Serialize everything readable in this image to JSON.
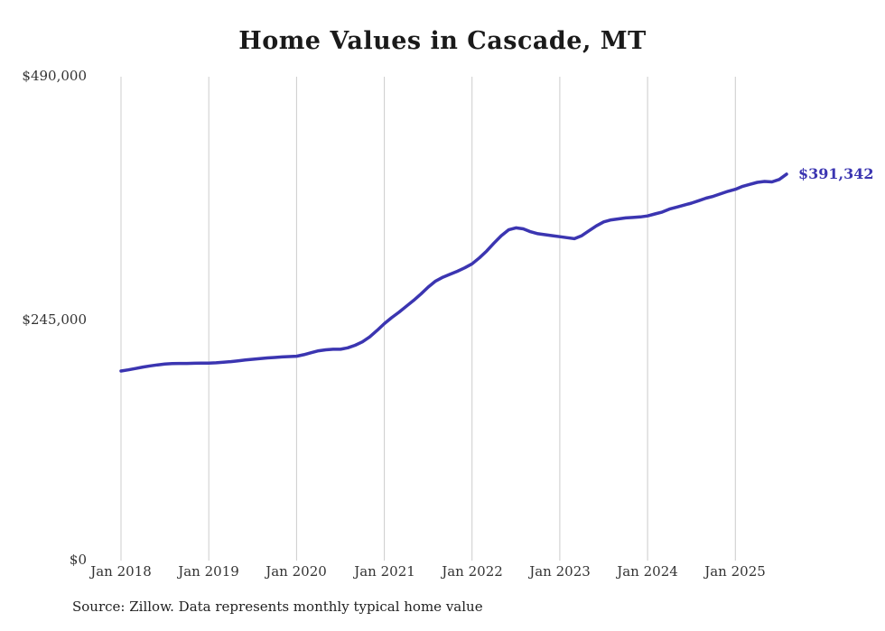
{
  "chart_data": {
    "type": "line",
    "title": "Home Values in Cascade, MT",
    "source": "Source: Zillow. Data represents monthly typical home value",
    "end_label": "$391,342",
    "x_start": "Jan 2018",
    "frequency": "monthly",
    "x_tick_labels": [
      "Jan 2018",
      "Jan 2019",
      "Jan 2020",
      "Jan 2021",
      "Jan 2022",
      "Jan 2023",
      "Jan 2024",
      "Jan 2025"
    ],
    "y_tick_labels": [
      "$490,000",
      "$245,000",
      "$0"
    ],
    "ylabel": "",
    "xlabel": "",
    "ylim": [
      0,
      490000
    ],
    "grid": "vertical-only",
    "legend": "none",
    "line_color": "#3b35b1",
    "gridline_color": "#cccccc",
    "series_name": "Typical home value",
    "values": [
      192000,
      193200,
      194500,
      196000,
      197200,
      198200,
      199000,
      199500,
      199700,
      199700,
      199800,
      200000,
      200000,
      200300,
      200800,
      201500,
      202300,
      203100,
      203900,
      204600,
      205200,
      205700,
      206200,
      206600,
      207000,
      208500,
      210500,
      212500,
      213500,
      214000,
      214000,
      215500,
      218000,
      221500,
      226500,
      233000,
      240000,
      246000,
      251500,
      257500,
      263500,
      270000,
      277000,
      283000,
      287000,
      290000,
      293000,
      296500,
      300500,
      306500,
      313500,
      321500,
      329000,
      335000,
      337000,
      336000,
      333000,
      331000,
      330000,
      329000,
      328000,
      327000,
      326000,
      329000,
      334000,
      339000,
      343000,
      345000,
      346000,
      347000,
      347500,
      348000,
      349000,
      351000,
      353000,
      356000,
      358000,
      360000,
      362000,
      364500,
      367000,
      369000,
      371500,
      374000,
      376000,
      379000,
      381000,
      383000,
      384000,
      383500,
      386000,
      391342
    ]
  }
}
